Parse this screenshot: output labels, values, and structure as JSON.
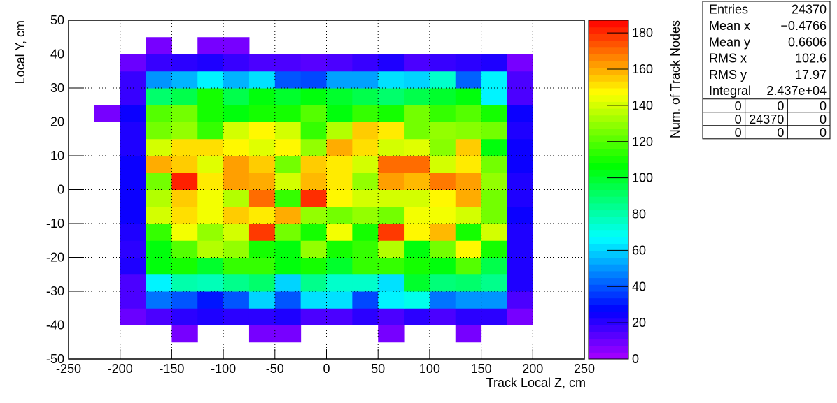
{
  "chart_data": {
    "type": "heatmap",
    "xlabel": "Track Local Z, cm",
    "ylabel": "Local Y, cm",
    "zlabel": "Num. of Track Nodes",
    "xbins": [
      -250,
      -225,
      -200,
      -175,
      -150,
      -125,
      -100,
      -75,
      -50,
      -25,
      0,
      25,
      50,
      75,
      100,
      125,
      150,
      175,
      200,
      225,
      250
    ],
    "ybins": [
      -50,
      -45,
      -40,
      -35,
      -30,
      -25,
      -20,
      -15,
      -10,
      -5,
      0,
      5,
      10,
      15,
      20,
      25,
      30,
      35,
      40,
      45,
      50
    ],
    "z": [
      [
        0,
        0,
        0,
        0,
        0,
        0,
        0,
        0,
        0,
        0,
        0,
        0,
        0,
        0,
        0,
        0,
        0,
        0,
        0,
        0
      ],
      [
        0,
        0,
        0,
        0,
        8,
        0,
        0,
        8,
        8,
        0,
        0,
        0,
        8,
        0,
        0,
        8,
        0,
        0,
        0,
        0
      ],
      [
        0,
        0,
        10,
        15,
        20,
        22,
        20,
        20,
        22,
        15,
        15,
        20,
        15,
        20,
        15,
        20,
        20,
        8,
        0,
        0
      ],
      [
        0,
        0,
        15,
        45,
        40,
        30,
        40,
        60,
        40,
        62,
        62,
        38,
        65,
        70,
        45,
        50,
        50,
        15,
        0,
        0
      ],
      [
        0,
        0,
        15,
        65,
        80,
        78,
        85,
        90,
        60,
        85,
        75,
        75,
        62,
        100,
        88,
        90,
        85,
        22,
        0,
        0
      ],
      [
        0,
        0,
        22,
        105,
        110,
        100,
        115,
        115,
        105,
        110,
        100,
        115,
        115,
        110,
        105,
        120,
        95,
        22,
        0,
        0
      ],
      [
        0,
        0,
        20,
        105,
        120,
        135,
        130,
        110,
        105,
        130,
        110,
        115,
        135,
        105,
        125,
        148,
        110,
        22,
        0,
        0
      ],
      [
        0,
        0,
        22,
        115,
        145,
        130,
        140,
        178,
        125,
        110,
        145,
        110,
        178,
        148,
        158,
        110,
        140,
        22,
        0,
        0
      ],
      [
        0,
        0,
        25,
        140,
        152,
        145,
        155,
        150,
        160,
        130,
        125,
        130,
        125,
        145,
        145,
        140,
        125,
        25,
        0,
        0
      ],
      [
        0,
        0,
        25,
        135,
        155,
        145,
        135,
        170,
        115,
        180,
        148,
        140,
        140,
        140,
        148,
        160,
        125,
        22,
        0,
        0
      ],
      [
        0,
        0,
        25,
        125,
        182,
        150,
        162,
        160,
        140,
        158,
        150,
        130,
        162,
        158,
        168,
        162,
        130,
        22,
        0,
        0
      ],
      [
        0,
        0,
        25,
        160,
        155,
        142,
        162,
        155,
        125,
        155,
        150,
        140,
        170,
        170,
        140,
        150,
        125,
        25,
        0,
        0
      ],
      [
        0,
        0,
        22,
        140,
        152,
        152,
        148,
        142,
        148,
        130,
        160,
        152,
        140,
        142,
        128,
        155,
        105,
        25,
        0,
        0
      ],
      [
        0,
        0,
        22,
        125,
        130,
        115,
        140,
        148,
        140,
        115,
        135,
        155,
        150,
        125,
        130,
        128,
        125,
        22,
        0,
        0
      ],
      [
        0,
        8,
        25,
        120,
        125,
        110,
        105,
        110,
        110,
        120,
        105,
        115,
        110,
        125,
        115,
        120,
        110,
        25,
        0,
        0
      ],
      [
        0,
        0,
        18,
        90,
        95,
        110,
        95,
        105,
        100,
        105,
        100,
        95,
        90,
        95,
        100,
        105,
        65,
        15,
        0,
        0
      ],
      [
        0,
        0,
        18,
        50,
        55,
        65,
        55,
        62,
        40,
        38,
        52,
        52,
        62,
        60,
        75,
        42,
        65,
        15,
        0,
        0
      ],
      [
        0,
        0,
        10,
        18,
        20,
        22,
        18,
        15,
        15,
        13,
        15,
        18,
        22,
        15,
        18,
        20,
        22,
        8,
        0,
        0
      ],
      [
        0,
        0,
        0,
        8,
        0,
        8,
        8,
        0,
        0,
        0,
        0,
        0,
        0,
        0,
        0,
        0,
        0,
        0,
        0,
        0
      ],
      [
        0,
        0,
        0,
        0,
        0,
        0,
        0,
        0,
        0,
        0,
        0,
        0,
        0,
        0,
        0,
        0,
        0,
        0,
        0,
        0
      ]
    ],
    "xlim": [
      -250,
      250
    ],
    "ylim": [
      -50,
      50
    ],
    "zlim": [
      0,
      187
    ],
    "xticks": [
      -250,
      -200,
      -150,
      -100,
      -50,
      0,
      50,
      100,
      150,
      200,
      250
    ],
    "yticks": [
      -50,
      -40,
      -30,
      -20,
      -10,
      0,
      10,
      20,
      30,
      40,
      50
    ],
    "zticks": [
      0,
      20,
      40,
      60,
      80,
      100,
      120,
      140,
      160,
      180
    ],
    "grid": true,
    "colormap": "rainbow",
    "stats": {
      "rows": [
        [
          "Entries",
          "24370"
        ],
        [
          "Mean x",
          "−0.4766"
        ],
        [
          "Mean y",
          "0.6606"
        ],
        [
          "RMS x",
          "102.6"
        ],
        [
          "RMS y",
          "17.97"
        ],
        [
          "Integral",
          "2.437e+04"
        ]
      ],
      "overflow": [
        [
          "0",
          "0",
          "0"
        ],
        [
          "0",
          "24370",
          "0"
        ],
        [
          "0",
          "0",
          "0"
        ]
      ]
    }
  }
}
